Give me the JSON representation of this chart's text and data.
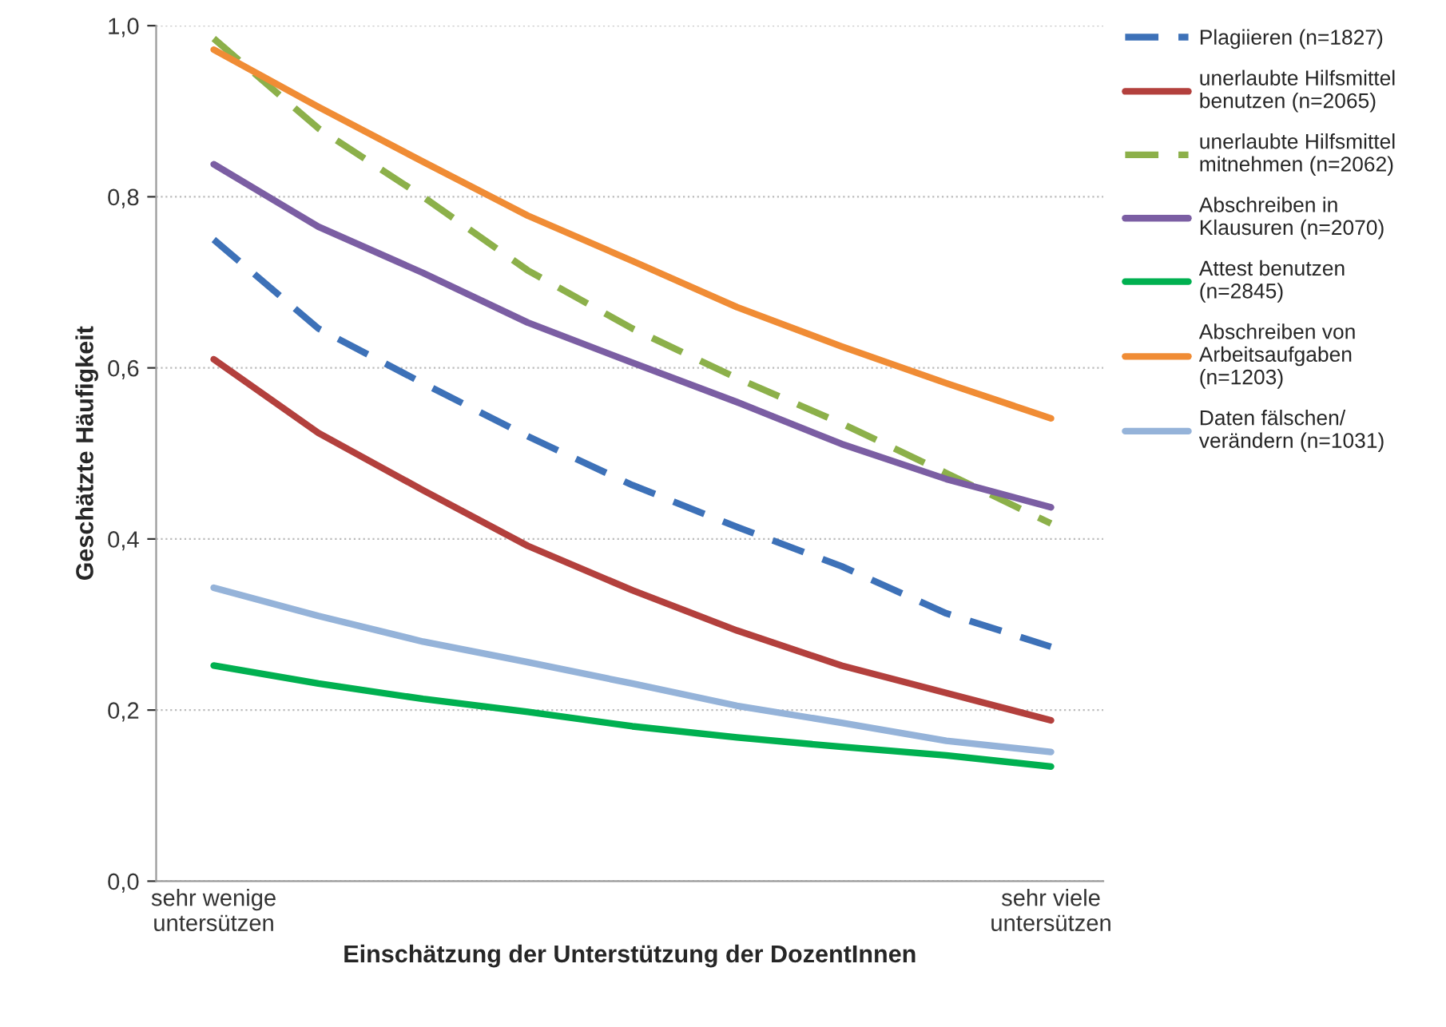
{
  "chart_data": {
    "type": "line",
    "xlabel": "Einschätzung der Unterstützung der DozentInnen",
    "ylabel": "Geschätzte Häufigkeit",
    "categories": [
      "sehr wenige\nuntersützen",
      null,
      null,
      null,
      null,
      null,
      null,
      null,
      "sehr viele\nuntersützen"
    ],
    "ylim": [
      0,
      1
    ],
    "yticks": [
      {
        "value": 0,
        "label": "0,0"
      },
      {
        "value": 0.2,
        "label": "0,2"
      },
      {
        "value": 0.4,
        "label": "0,4"
      },
      {
        "value": 0.6,
        "label": "0,6"
      },
      {
        "value": 0.8,
        "label": "0,8"
      },
      {
        "value": 1,
        "label": "1,0"
      }
    ],
    "grid": "y",
    "legend": "right",
    "marker": "none",
    "series": [
      {
        "name": "Plagiieren (n=1827)",
        "color": "#3d71b8",
        "line_style": "dashed",
        "values": [
          0.75,
          0.646,
          0.582,
          0.52,
          0.463,
          0.414,
          0.368,
          0.313,
          0.274
        ]
      },
      {
        "name": "unerlaubte Hilfsmittel\nbenutzen (n=2065)",
        "color": "#b3403d",
        "line_style": "solid",
        "values": [
          0.61,
          0.524,
          0.457,
          0.392,
          0.34,
          0.293,
          0.252,
          0.22,
          0.188
        ]
      },
      {
        "name": "unerlaubte Hilfsmittel\nmitnehmen (n=2062)",
        "color": "#8cb04a",
        "line_style": "dashed",
        "values": [
          0.985,
          0.88,
          0.8,
          0.714,
          0.646,
          0.588,
          0.535,
          0.477,
          0.418
        ]
      },
      {
        "name": "Abschreiben in\nKlausuren (n=2070)",
        "color": "#7b5ea3",
        "line_style": "solid",
        "values": [
          0.838,
          0.765,
          0.711,
          0.653,
          0.606,
          0.56,
          0.511,
          0.47,
          0.437
        ]
      },
      {
        "name": "Attest benutzen\n(n=2845)",
        "color": "#00b050",
        "line_style": "solid",
        "values": [
          0.252,
          0.231,
          0.213,
          0.198,
          0.181,
          0.168,
          0.157,
          0.147,
          0.134
        ]
      },
      {
        "name": "Abschreiben von\nArbeitsaufgaben\n(n=1203)",
        "color": "#f08c35",
        "line_style": "solid",
        "values": [
          0.972,
          0.905,
          0.841,
          0.778,
          0.725,
          0.671,
          0.625,
          0.582,
          0.541
        ]
      },
      {
        "name": "Daten fälschen/\nverändern (n=1031)",
        "color": "#95b3d9",
        "line_style": "solid",
        "values": [
          0.343,
          0.31,
          0.28,
          0.256,
          0.231,
          0.205,
          0.185,
          0.164,
          0.151
        ]
      }
    ]
  }
}
